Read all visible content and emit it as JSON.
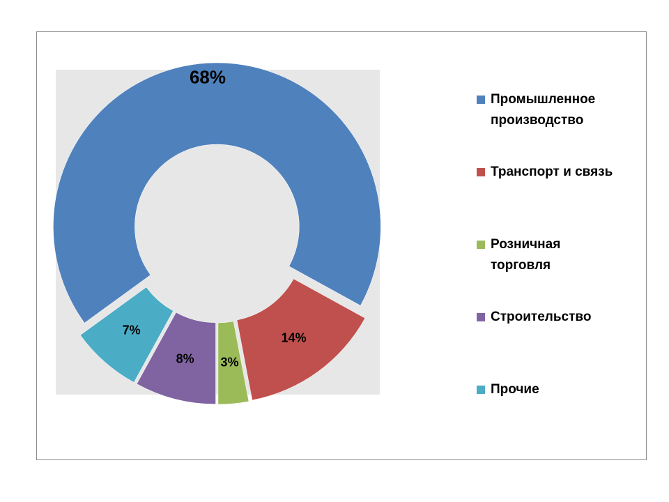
{
  "chart_data": {
    "type": "donut",
    "categories": [
      "Промышленное производство",
      "Транспорт и связь",
      "Розничная торговля",
      "Строительство",
      "Прочие"
    ],
    "values": [
      68,
      14,
      3,
      8,
      7
    ],
    "value_labels": [
      "68%",
      "14%",
      "3%",
      "8%",
      "7%"
    ],
    "colors": [
      "#4f81bd",
      "#c0504d",
      "#9bbb59",
      "#8064a2",
      "#4bacc6"
    ],
    "legend": "right"
  }
}
